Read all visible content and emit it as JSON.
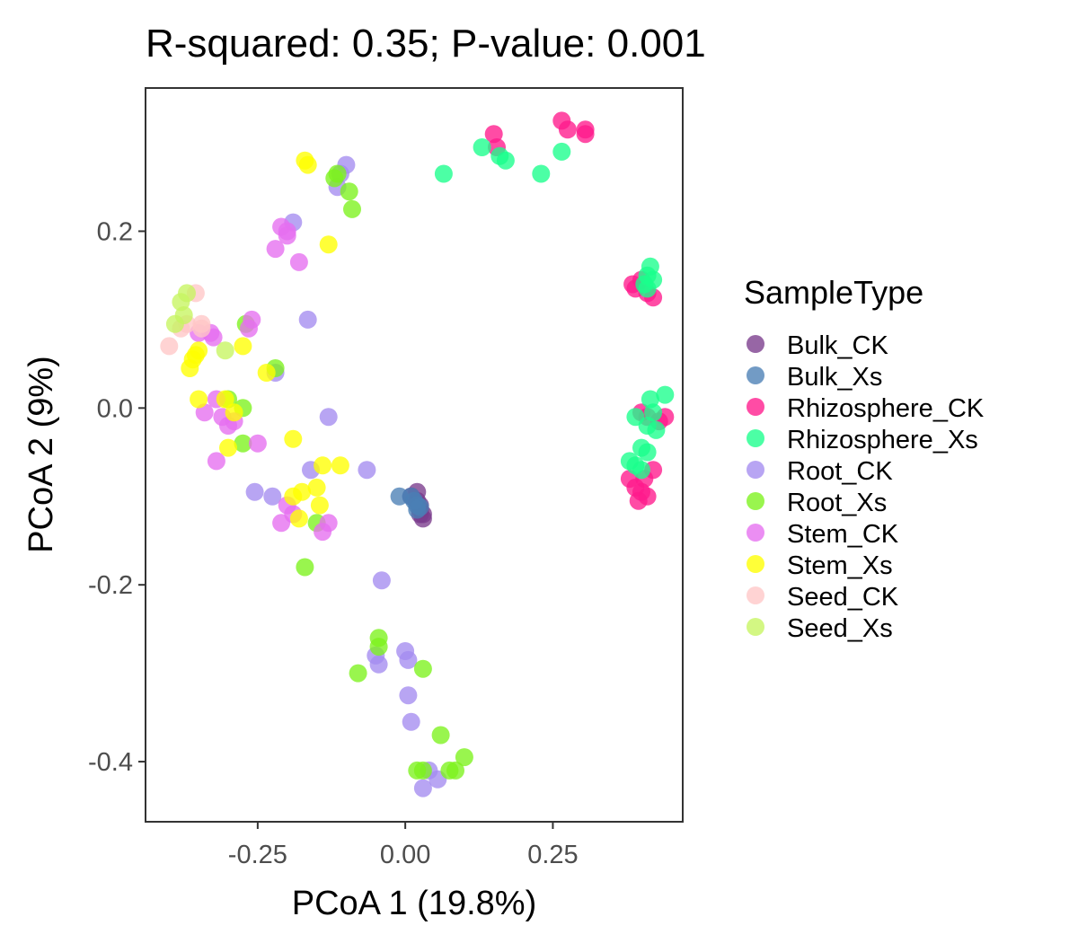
{
  "chart_data": {
    "type": "scatter",
    "title": "R-squared: 0.35; P-value: 0.001",
    "xlabel": "PCoA 1 (19.8%)",
    "ylabel": "PCoA 2 (9%)",
    "xlim": [
      -0.44,
      0.47
    ],
    "ylim": [
      -0.468,
      0.362
    ],
    "xticks": [
      -0.25,
      0.0,
      0.25
    ],
    "xtick_labels": [
      "-0.25",
      "0.00",
      "0.25"
    ],
    "yticks": [
      -0.4,
      -0.2,
      0.0,
      0.2
    ],
    "ytick_labels": [
      "-0.4",
      "-0.2",
      "0.0",
      "0.2"
    ],
    "grid": false,
    "legend_title": "SampleType",
    "legend_position": "right",
    "series": [
      {
        "name": "Bulk_CK",
        "color": "#7a3b8c",
        "x": [
          0.01,
          0.02,
          0.02,
          0.025,
          0.025,
          0.03,
          0.03,
          0.025
        ],
        "y": [
          -0.1,
          -0.095,
          -0.105,
          -0.11,
          -0.115,
          -0.12,
          -0.125,
          -0.12
        ]
      },
      {
        "name": "Bulk_Xs",
        "color": "#4a7fb5",
        "x": [
          -0.01,
          0.01,
          0.015,
          0.02,
          0.02,
          0.025
        ],
        "y": [
          -0.1,
          -0.1,
          -0.105,
          -0.11,
          -0.115,
          -0.112
        ]
      },
      {
        "name": "Rhizosphere_CK",
        "color": "#ff1a8c",
        "x": [
          0.15,
          0.155,
          0.265,
          0.275,
          0.305,
          0.305,
          0.385,
          0.39,
          0.4,
          0.41,
          0.42,
          0.4,
          0.41,
          0.43,
          0.44,
          0.42,
          0.38,
          0.39,
          0.4,
          0.41,
          0.395,
          0.405
        ],
        "y": [
          0.31,
          0.295,
          0.325,
          0.315,
          0.315,
          0.31,
          0.14,
          0.135,
          0.145,
          0.13,
          0.125,
          -0.005,
          -0.01,
          -0.015,
          -0.01,
          -0.07,
          -0.08,
          -0.09,
          -0.095,
          -0.1,
          -0.105,
          -0.08
        ]
      },
      {
        "name": "Rhizosphere_Xs",
        "color": "#1aff8c",
        "x": [
          0.065,
          0.13,
          0.16,
          0.17,
          0.23,
          0.265,
          0.41,
          0.415,
          0.42,
          0.405,
          0.41,
          0.415,
          0.44,
          0.42,
          0.39,
          0.41,
          0.425,
          0.4,
          0.41,
          0.38,
          0.39,
          0.4
        ],
        "y": [
          0.265,
          0.295,
          0.285,
          0.28,
          0.265,
          0.29,
          0.15,
          0.16,
          0.145,
          0.14,
          0.135,
          0.01,
          0.015,
          -0.005,
          -0.01,
          -0.02,
          -0.025,
          -0.045,
          -0.05,
          -0.06,
          -0.065,
          -0.07
        ]
      },
      {
        "name": "Root_CK",
        "color": "#a48cf0",
        "x": [
          -0.1,
          -0.11,
          -0.115,
          -0.19,
          -0.165,
          -0.22,
          -0.255,
          -0.225,
          -0.13,
          -0.16,
          -0.065,
          -0.04,
          -0.05,
          -0.045,
          0.0,
          0.005,
          0.005,
          0.01,
          0.04,
          0.055,
          0.03
        ],
        "y": [
          0.275,
          0.265,
          0.25,
          0.21,
          0.1,
          0.04,
          -0.095,
          -0.1,
          -0.01,
          -0.07,
          -0.07,
          -0.195,
          -0.28,
          -0.29,
          -0.275,
          -0.285,
          -0.325,
          -0.355,
          -0.41,
          -0.42,
          -0.43
        ]
      },
      {
        "name": "Root_Xs",
        "color": "#7cf21c",
        "x": [
          -0.12,
          -0.115,
          -0.095,
          -0.09,
          -0.27,
          -0.3,
          -0.275,
          -0.275,
          -0.22,
          -0.17,
          -0.15,
          -0.08,
          -0.045,
          -0.045,
          0.03,
          0.06,
          0.1,
          0.085,
          0.075,
          0.02,
          0.03
        ],
        "y": [
          0.26,
          0.265,
          0.245,
          0.225,
          0.095,
          0.01,
          0.0,
          -0.04,
          0.045,
          -0.18,
          -0.13,
          -0.3,
          -0.26,
          -0.27,
          -0.295,
          -0.37,
          -0.395,
          -0.41,
          -0.41,
          -0.41,
          -0.41
        ]
      },
      {
        "name": "Stem_CK",
        "color": "#e66ef0",
        "x": [
          -0.21,
          -0.2,
          -0.2,
          -0.22,
          -0.18,
          -0.26,
          -0.265,
          -0.33,
          -0.325,
          -0.35,
          -0.32,
          -0.34,
          -0.31,
          -0.29,
          -0.3,
          -0.32,
          -0.25,
          -0.2,
          -0.21,
          -0.19,
          -0.14,
          -0.13
        ],
        "y": [
          0.205,
          0.2,
          0.195,
          0.18,
          0.165,
          0.1,
          0.09,
          0.085,
          0.08,
          0.085,
          0.01,
          -0.005,
          -0.01,
          -0.015,
          -0.02,
          -0.06,
          -0.04,
          -0.11,
          -0.13,
          -0.12,
          -0.14,
          -0.13
        ]
      },
      {
        "name": "Stem_Xs",
        "color": "#ffff00",
        "x": [
          -0.17,
          -0.165,
          -0.13,
          -0.35,
          -0.355,
          -0.36,
          -0.365,
          -0.275,
          -0.235,
          -0.35,
          -0.305,
          -0.29,
          -0.3,
          -0.19,
          -0.175,
          -0.19,
          -0.18,
          -0.15,
          -0.11,
          -0.14,
          -0.145
        ],
        "y": [
          0.28,
          0.275,
          0.185,
          0.065,
          0.06,
          0.055,
          0.045,
          0.07,
          0.04,
          0.01,
          0.01,
          -0.005,
          -0.045,
          -0.035,
          -0.095,
          -0.1,
          -0.125,
          -0.09,
          -0.065,
          -0.065,
          -0.11
        ]
      },
      {
        "name": "Seed_CK",
        "color": "#ffc6c6",
        "x": [
          -0.4,
          -0.38,
          -0.37,
          -0.345,
          -0.345,
          -0.355
        ],
        "y": [
          0.07,
          0.09,
          0.095,
          0.09,
          0.095,
          0.13
        ]
      },
      {
        "name": "Seed_Xs",
        "color": "#c6f560",
        "x": [
          -0.37,
          -0.38,
          -0.375,
          -0.39,
          -0.305
        ],
        "y": [
          0.13,
          0.12,
          0.105,
          0.095,
          0.065
        ]
      }
    ]
  }
}
